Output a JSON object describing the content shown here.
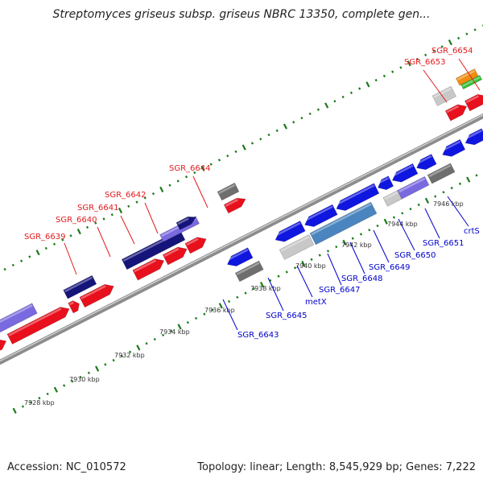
{
  "title": "Streptomyces griseus subsp. griseus NBRC 13350, complete gen...",
  "accession": "Accession: NC_010572",
  "topology": "Topology: linear; Length: 8,545,929 bp; Genes: 7,222",
  "colors": {
    "backbone": "#8c8c8c",
    "cds_forward": "#e8101c",
    "cds_reverse": "#0f16e0",
    "gene_gray": "#6e6e6e",
    "gene_light": "#c8c8c8",
    "gene_violet": "#7a6ae0",
    "gene_navy": "#14147a",
    "gene_steel": "#4a85bf",
    "gene_orange": "#f08c10",
    "gene_green": "#30c030",
    "tick": "#1a7a1a",
    "label_top": "#e31a1c",
    "label_bottom": "#0000cc"
  },
  "kbp_labels": [
    "7928 kbp",
    "7930 kbp",
    "7932 kbp",
    "7934 kbp",
    "7936 kbp",
    "7938 kbp",
    "7940 kbp",
    "7942 kbp",
    "7944 kbp",
    "7946 kbp"
  ],
  "top_genes": [
    "SGR_6639",
    "SGR_6640",
    "SGR_6641",
    "SGR_6642",
    "SGR_6644",
    "SGR_6653",
    "SGR_6654"
  ],
  "bottom_genes": [
    "SGR_6643",
    "SGR_6645",
    "metX",
    "SGR_6647",
    "SGR_6648",
    "SGR_6649",
    "SGR_6650",
    "SGR_6651",
    "crtS"
  ]
}
